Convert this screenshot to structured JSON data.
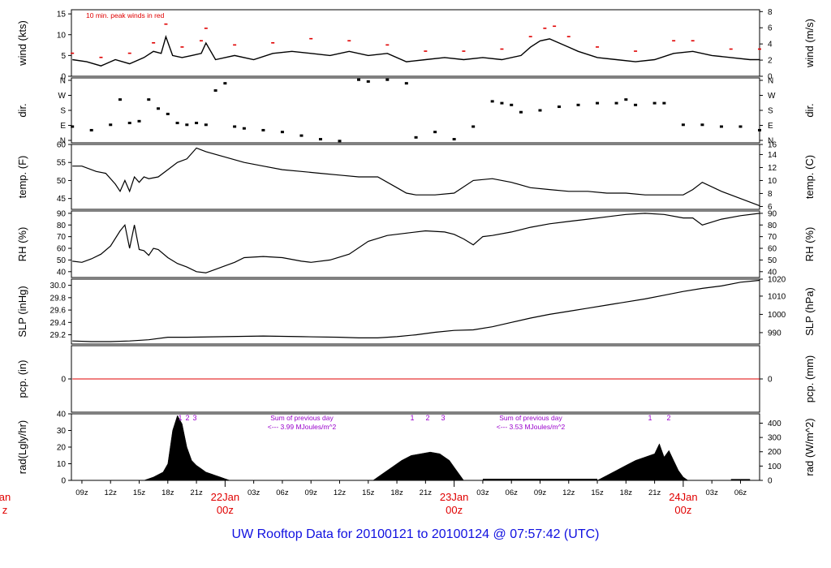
{
  "footer": {
    "title": "UW Rooftop Data for 20100121  to  20100124 @ 07:57:42  (UTC)"
  },
  "colors": {
    "frame": "#000000",
    "trace": "#000000",
    "peak_wind": "#e00000",
    "date_label": "#e00000",
    "annotation": "#9900cc",
    "title": "#1010e0",
    "precip_line": "#e00000"
  },
  "chart_data": [
    {
      "id": "wind",
      "type": "line",
      "ylabel_left": "wind (kts)",
      "ylabel_right": "wind (m/s)",
      "ylim": [
        0,
        16
      ],
      "left_ticks": [
        "0",
        "5",
        "10",
        "15"
      ],
      "right_ticks": [
        "0",
        "2",
        "4",
        "6",
        "8"
      ],
      "annotation": "10 min. peak winds in red",
      "series": [
        {
          "role": "wind",
          "x": [
            8.0,
            9.5,
            11.0,
            12.5,
            14.0,
            15.5,
            16.5,
            17.3,
            17.8,
            18.5,
            19.5,
            20.5,
            21.5,
            22.0,
            23.0,
            25.0,
            27.0,
            29.0,
            31.0,
            33.0,
            35.0,
            37.0,
            39.0,
            41.0,
            43.0,
            45.0,
            47.0,
            49.0,
            51.0,
            53.0,
            55.0,
            56.0,
            57.0,
            58.0,
            59.0,
            60.0,
            61.0,
            63.0,
            65.0,
            67.0,
            69.0,
            71.0,
            73.0,
            75.0,
            77.0,
            79.0,
            80.0
          ],
          "y": [
            4.0,
            3.5,
            2.5,
            4.0,
            3.0,
            4.5,
            6.0,
            5.5,
            9.5,
            5.0,
            4.5,
            5.0,
            5.5,
            8.0,
            4.0,
            5.0,
            4.0,
            5.5,
            6.0,
            5.5,
            5.0,
            6.0,
            5.0,
            5.5,
            3.5,
            4.0,
            4.5,
            4.0,
            4.5,
            4.0,
            5.0,
            7.0,
            8.5,
            9.0,
            8.0,
            7.0,
            6.0,
            4.5,
            4.0,
            3.5,
            4.0,
            5.5,
            6.0,
            5.0,
            4.5,
            4.0,
            4.0
          ]
        },
        {
          "role": "peak",
          "x": [
            8.0,
            11.0,
            14.0,
            16.5,
            17.8,
            19.5,
            21.5,
            22.0,
            25.0,
            29.0,
            33.0,
            37.0,
            41.0,
            45.0,
            49.0,
            53.0,
            56.0,
            57.5,
            58.5,
            60.0,
            63.0,
            67.0,
            71.0,
            73.0,
            77.0,
            80.0
          ],
          "y": [
            5.5,
            4.5,
            5.5,
            8.0,
            12.5,
            7.0,
            8.5,
            11.5,
            7.5,
            8.0,
            9.0,
            8.5,
            7.5,
            6.0,
            6.0,
            6.5,
            9.5,
            11.5,
            12.0,
            9.5,
            7.0,
            6.0,
            8.5,
            8.5,
            6.5,
            6.5
          ]
        }
      ]
    },
    {
      "id": "dir",
      "type": "scatter",
      "ylabel_left": "dir.",
      "ylabel_right": "dir.",
      "ylim": [
        0,
        360
      ],
      "left_ticks": [
        "N",
        "E",
        "S",
        "W",
        "N"
      ],
      "right_ticks": [
        "N",
        "E",
        "S",
        "W",
        "N"
      ],
      "x": [
        8.0,
        10.0,
        12.0,
        13.0,
        14.0,
        15.0,
        16.0,
        17.0,
        18.0,
        19.0,
        20.0,
        21.0,
        22.0,
        23.0,
        24.0,
        25.0,
        26.0,
        28.0,
        30.0,
        32.0,
        34.0,
        36.0,
        38.0,
        39.0,
        41.0,
        43.0,
        44.0,
        46.0,
        48.0,
        50.0,
        52.0,
        53.0,
        54.0,
        55.0,
        57.0,
        59.0,
        61.0,
        63.0,
        65.0,
        66.0,
        67.0,
        69.0,
        70.0,
        72.0,
        74.0,
        76.0,
        78.0,
        80.0
      ],
      "y": [
        90,
        70,
        100,
        240,
        110,
        120,
        240,
        190,
        160,
        110,
        100,
        110,
        100,
        290,
        330,
        90,
        80,
        70,
        60,
        40,
        20,
        10,
        350,
        340,
        350,
        330,
        30,
        60,
        20,
        90,
        230,
        220,
        210,
        170,
        180,
        200,
        210,
        220,
        220,
        240,
        210,
        220,
        220,
        100,
        100,
        90,
        90,
        70
      ]
    },
    {
      "id": "temp",
      "type": "line",
      "ylabel_left": "temp. (F)",
      "ylabel_right": "temp. (C)",
      "ylim": [
        42,
        60
      ],
      "left_ticks": [
        "45",
        "50",
        "55",
        "60"
      ],
      "right_ticks": [
        "6",
        "8",
        "10",
        "12",
        "14",
        "16"
      ],
      "x": [
        8.0,
        9.0,
        10.5,
        11.5,
        12.5,
        13.0,
        13.5,
        14.0,
        14.5,
        15.0,
        15.5,
        16.0,
        17.0,
        18.0,
        19.0,
        20.0,
        21.0,
        22.0,
        24.0,
        26.0,
        28.0,
        30.0,
        32.0,
        34.0,
        36.0,
        38.0,
        40.0,
        42.0,
        43.0,
        44.0,
        45.0,
        46.0,
        48.0,
        50.0,
        52.0,
        54.0,
        56.0,
        58.0,
        60.0,
        62.0,
        64.0,
        66.0,
        68.0,
        70.0,
        72.0,
        73.0,
        74.0,
        76.0,
        78.0,
        80.0
      ],
      "y": [
        54.0,
        54.0,
        52.5,
        52.0,
        49.0,
        47.0,
        50.0,
        47.0,
        51.0,
        49.5,
        51.0,
        50.5,
        51.0,
        53.0,
        55.0,
        56.0,
        59.0,
        58.0,
        56.5,
        55.0,
        54.0,
        53.0,
        52.5,
        52.0,
        51.5,
        51.0,
        51.0,
        48.0,
        46.5,
        46.0,
        46.0,
        46.0,
        46.5,
        50.0,
        50.5,
        49.5,
        48.0,
        47.5,
        47.0,
        47.0,
        46.5,
        46.5,
        46.0,
        46.0,
        46.0,
        47.5,
        49.5,
        47.0,
        45.0,
        43.0
      ]
    },
    {
      "id": "rh",
      "type": "line",
      "ylabel_left": "RH (%)",
      "ylabel_right": "RH (%)",
      "ylim": [
        35,
        92
      ],
      "left_ticks": [
        "40",
        "50",
        "60",
        "70",
        "80",
        "90"
      ],
      "right_ticks": [
        "40",
        "50",
        "60",
        "70",
        "80",
        "90"
      ],
      "x": [
        8.0,
        9.0,
        10.0,
        11.0,
        12.0,
        13.0,
        13.5,
        14.0,
        14.5,
        15.0,
        15.5,
        16.0,
        16.5,
        17.0,
        18.0,
        19.0,
        20.0,
        21.0,
        22.0,
        23.0,
        24.0,
        25.0,
        26.0,
        28.0,
        30.0,
        32.0,
        33.0,
        35.0,
        37.0,
        39.0,
        41.0,
        43.0,
        45.0,
        47.0,
        48.0,
        49.0,
        50.0,
        51.0,
        52.0,
        54.0,
        56.0,
        58.0,
        60.0,
        62.0,
        64.0,
        66.0,
        68.0,
        70.0,
        72.0,
        73.0,
        74.0,
        76.0,
        78.0,
        80.0
      ],
      "y": [
        49.0,
        48.0,
        51.0,
        55.0,
        62.0,
        75.0,
        80.0,
        60.0,
        80.0,
        59.0,
        58.0,
        54.0,
        60.0,
        59.0,
        52.0,
        47.0,
        44.0,
        40.0,
        39.0,
        42.0,
        45.0,
        48.0,
        52.0,
        53.0,
        52.0,
        49.0,
        48.0,
        50.0,
        55.0,
        66.0,
        71.0,
        73.0,
        75.0,
        74.0,
        72.0,
        68.0,
        63.0,
        70.0,
        71.0,
        74.0,
        78.0,
        81.0,
        83.0,
        85.0,
        87.0,
        89.0,
        90.0,
        89.0,
        86.0,
        86.0,
        80.0,
        85.0,
        88.0,
        90.0
      ]
    },
    {
      "id": "slp",
      "type": "line",
      "ylabel_left": "SLP (inHg)",
      "ylabel_right": "SLP (hPa)",
      "ylim": [
        29.05,
        30.1
      ],
      "left_ticks": [
        "29.2",
        "29.4",
        "29.6",
        "29.8",
        "30.0"
      ],
      "right_ticks": [
        "990",
        "1000",
        "1010",
        "1020"
      ],
      "x": [
        8.0,
        10.0,
        12.0,
        14.0,
        16.0,
        18.0,
        20.0,
        24.0,
        28.0,
        32.0,
        36.0,
        38.0,
        40.0,
        42.0,
        44.0,
        46.0,
        48.0,
        50.0,
        52.0,
        54.0,
        56.0,
        58.0,
        60.0,
        62.0,
        64.0,
        66.0,
        68.0,
        70.0,
        72.0,
        74.0,
        76.0,
        78.0,
        80.0
      ],
      "y": [
        29.1,
        29.09,
        29.09,
        29.1,
        29.12,
        29.16,
        29.16,
        29.17,
        29.18,
        29.17,
        29.16,
        29.15,
        29.15,
        29.17,
        29.2,
        29.24,
        29.27,
        29.28,
        29.33,
        29.4,
        29.47,
        29.53,
        29.58,
        29.63,
        29.68,
        29.73,
        29.78,
        29.84,
        29.9,
        29.95,
        29.99,
        30.05,
        30.08
      ]
    },
    {
      "id": "pcp",
      "type": "line",
      "ylabel_left": "pcp. (in)",
      "ylabel_right": "pcp. (mm)",
      "ylim": [
        -1,
        1
      ],
      "left_ticks": [
        "0"
      ],
      "right_ticks": [
        "0"
      ],
      "x": [
        8.0,
        80.0
      ],
      "y": [
        0,
        0
      ]
    },
    {
      "id": "rad",
      "type": "area",
      "ylabel_left": "rad(Lgly/hr)",
      "ylabel_right": "rad (W/m^2)",
      "ylim": [
        0,
        40
      ],
      "left_ticks": [
        "0",
        "10",
        "20",
        "30",
        "40"
      ],
      "right_ticks": [
        "0",
        "100",
        "200",
        "300",
        "400"
      ],
      "annotations": {
        "sum_day1": [
          "Sum of previous day",
          "<--- 3.99 MJoules/m^2"
        ],
        "sum_day2": [
          "Sum of previous day",
          "<--- 3.53 MJoules/m^2"
        ],
        "markers_day1": [
          "1",
          "2",
          "3"
        ],
        "markers_day2": [
          "1",
          "2",
          "3"
        ],
        "markers_day3": [
          "1",
          "2"
        ]
      },
      "x": [
        15.5,
        16.5,
        17.5,
        18.0,
        18.5,
        19.0,
        19.5,
        20.0,
        20.5,
        21.0,
        21.5,
        22.0,
        22.5,
        23.0,
        23.5,
        24.0,
        24.5,
        39.5,
        40.5,
        41.5,
        42.5,
        43.5,
        44.5,
        45.5,
        46.5,
        47.5,
        48.0,
        48.5,
        49.0,
        63.0,
        64.0,
        65.0,
        66.0,
        67.0,
        68.0,
        69.0,
        69.5,
        70.0,
        70.5,
        71.0,
        71.5,
        72.0,
        72.5
      ],
      "y": [
        0,
        2,
        5,
        10,
        30,
        39,
        34,
        20,
        12,
        9,
        7,
        5,
        4,
        3,
        2,
        1,
        0,
        0,
        4,
        8,
        12,
        15,
        16,
        17,
        16,
        12,
        8,
        4,
        0,
        0,
        3,
        6,
        9,
        12,
        14,
        16,
        22,
        14,
        18,
        12,
        6,
        2,
        0
      ],
      "low_segments": [
        [
          51.0,
          63.0,
          0.6
        ],
        [
          77.0,
          79.0,
          0.4
        ]
      ]
    }
  ],
  "time_axis": {
    "ticks": [
      {
        "x": 9,
        "label": "09z"
      },
      {
        "x": 12,
        "label": "12z"
      },
      {
        "x": 15,
        "label": "15z"
      },
      {
        "x": 18,
        "label": "18z"
      },
      {
        "x": 21,
        "label": "21z"
      },
      {
        "x": 27,
        "label": "03z"
      },
      {
        "x": 30,
        "label": "06z"
      },
      {
        "x": 33,
        "label": "09z"
      },
      {
        "x": 36,
        "label": "12z"
      },
      {
        "x": 39,
        "label": "15z"
      },
      {
        "x": 42,
        "label": "18z"
      },
      {
        "x": 45,
        "label": "21z"
      },
      {
        "x": 51,
        "label": "03z"
      },
      {
        "x": 54,
        "label": "06z"
      },
      {
        "x": 57,
        "label": "09z"
      },
      {
        "x": 60,
        "label": "12z"
      },
      {
        "x": 63,
        "label": "15z"
      },
      {
        "x": 66,
        "label": "18z"
      },
      {
        "x": 69,
        "label": "21z"
      },
      {
        "x": 75,
        "label": "03z"
      },
      {
        "x": 78,
        "label": "06z"
      }
    ],
    "day_labels": [
      {
        "x": 0,
        "line1": "an",
        "line2": "z"
      },
      {
        "x": 24,
        "line1": "22Jan",
        "line2": "00z"
      },
      {
        "x": 48,
        "line1": "23Jan",
        "line2": "00z"
      },
      {
        "x": 72,
        "line1": "24Jan",
        "line2": "00z"
      }
    ],
    "range": [
      7.9,
      80.0
    ]
  }
}
